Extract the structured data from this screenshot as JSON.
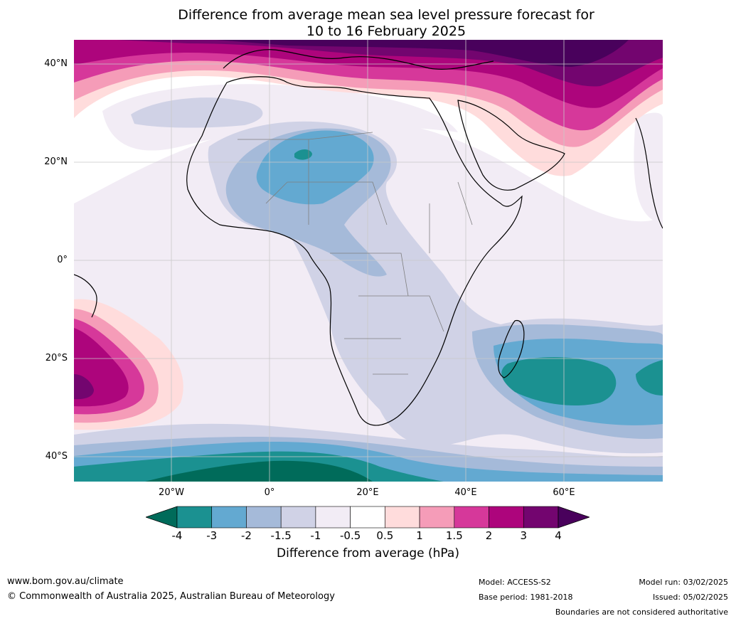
{
  "title": {
    "line1": "Difference from average mean sea level pressure forecast for",
    "line2": "10 to 16 February 2025"
  },
  "map": {
    "region": "Africa",
    "lat_labels": [
      "40°N",
      "20°N",
      "0°",
      "20°S",
      "40°S"
    ],
    "lon_labels": [
      "20°W",
      "0°",
      "20°E",
      "40°E",
      "60°E"
    ],
    "colors": {
      "ocean_background": "#ffffff",
      "coastline": "#000000",
      "boundaries": "#7f7f7f",
      "gridlines": "#c8c8c8"
    }
  },
  "colorbar": {
    "ticks": [
      "-4",
      "-3",
      "-2",
      "-1.5",
      "-1",
      "-0.5",
      "0.5",
      "1",
      "1.5",
      "2",
      "3",
      "4"
    ],
    "label": "Difference from average (hPa)",
    "colors": [
      "#006b5a",
      "#1b9191",
      "#63a9d1",
      "#a5bad9",
      "#d0d2e6",
      "#f2ecf5",
      "#ffffff",
      "#ffdcdc",
      "#f59cb8",
      "#d6389a",
      "#ad057c",
      "#73056f",
      "#49015c"
    ]
  },
  "footer": {
    "website": "www.bom.gov.au/climate",
    "copyright": "© Commonwealth of Australia 2025, Australian Bureau of Meteorology",
    "model": "Model: ACCESS-S2",
    "base_period": "Base period: 1981-2018",
    "model_run": "Model run: 03/02/2025",
    "issued": "Issued: 05/02/2025",
    "boundaries_note": "Boundaries are not considered authoritative"
  }
}
